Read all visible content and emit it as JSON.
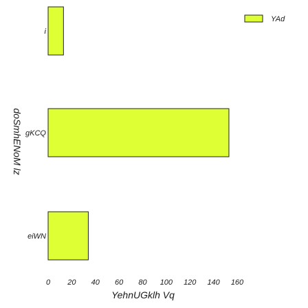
{
  "chart_data": {
    "type": "bar",
    "orientation": "horizontal",
    "categories": [
      "i",
      "gKCQ",
      "eiWN"
    ],
    "series": [
      {
        "name": "YAd",
        "values": [
          13,
          153,
          34
        ],
        "color": "#ddff33"
      }
    ],
    "xlabel": "YehnUGklh Vq",
    "ylabel": "doSmhENoM lz",
    "xlim": [
      0,
      160
    ],
    "xticks": [
      0,
      20,
      40,
      60,
      80,
      100,
      120,
      140,
      160
    ],
    "grid": false,
    "legend_position": "top-right",
    "bar_edge_color": "#222222"
  }
}
